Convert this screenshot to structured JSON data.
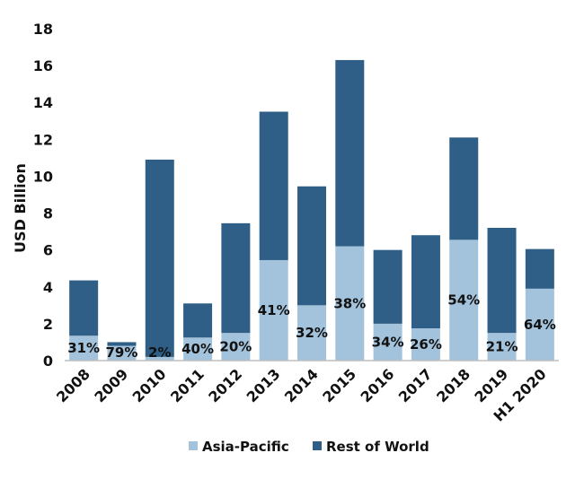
{
  "chart_data": {
    "type": "bar",
    "stacked": true,
    "categories": [
      "2008",
      "2009",
      "2010",
      "2011",
      "2012",
      "2013",
      "2014",
      "2015",
      "2016",
      "2017",
      "2018",
      "2019",
      "H1 2020"
    ],
    "series": [
      {
        "name": "Asia-Pacific",
        "color": "#a3c3dc",
        "values": [
          1.35,
          0.8,
          0.2,
          1.25,
          1.5,
          5.45,
          3.0,
          6.2,
          2.0,
          1.75,
          6.55,
          1.5,
          3.9
        ]
      },
      {
        "name": "Rest of World",
        "color": "#2f5f86",
        "values": [
          3.0,
          0.2,
          10.7,
          1.85,
          5.95,
          8.05,
          6.45,
          10.1,
          4.0,
          5.05,
          5.55,
          5.7,
          2.15
        ]
      }
    ],
    "data_labels": [
      "31%",
      "79%",
      "2%",
      "40%",
      "20%",
      "41%",
      "32%",
      "38%",
      "34%",
      "26%",
      "54%",
      "21%",
      "64%"
    ],
    "ylabel": "USD Billion",
    "xlabel": "",
    "ylim": [
      0,
      18
    ],
    "yticks": [
      "0",
      "2",
      "4",
      "6",
      "8",
      "10",
      "12",
      "14",
      "16",
      "18"
    ],
    "grid": false,
    "legend_position": "bottom-center"
  }
}
